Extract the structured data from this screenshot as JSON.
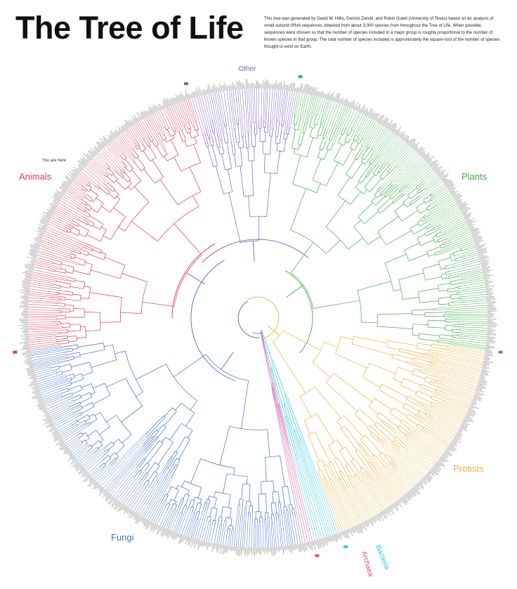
{
  "title": "The Tree of Life",
  "description": "This tree was generated by David M. Hillis, Derrick Zwickl, and Robin Gutell (University of Texas) based on an analysis of small subunit rRNA sequences obtained from about 3,000 species from throughout the Tree of Life. When possible, sequences were chosen so that the number of species included in a major group is roughly proportional to the number of known species in that group. The total number of species included is approximately the square-root of the number of species thought to exist on Earth.",
  "you_are_here": "You are here",
  "groups": [
    {
      "key": "other",
      "label": "Other",
      "color": "#7b5cc4"
    },
    {
      "key": "plants",
      "label": "Plants",
      "color": "#3fae49"
    },
    {
      "key": "protists",
      "label": "Protists",
      "color": "#efb13a"
    },
    {
      "key": "bacteria",
      "label": "Bacteria",
      "color": "#2ec6dc"
    },
    {
      "key": "archaea",
      "label": "Archaea",
      "color": "#d94aa0"
    },
    {
      "key": "fungi",
      "label": "Fungi",
      "color": "#3f6fc4"
    },
    {
      "key": "animals",
      "label": "Animals",
      "color": "#e23a4c"
    }
  ],
  "leaf_color": "#8a8a8a"
}
